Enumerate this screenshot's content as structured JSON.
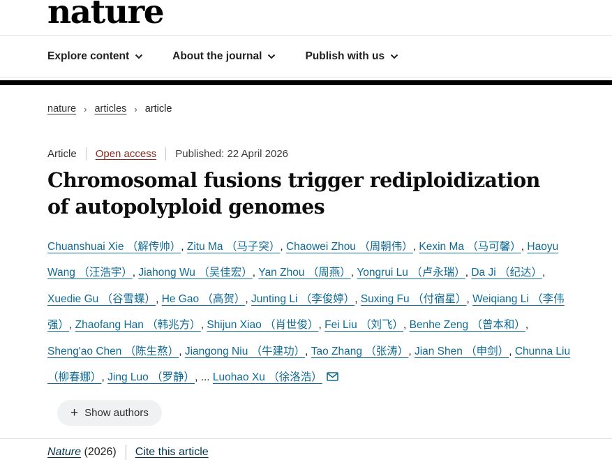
{
  "brand": {
    "logo": "nature"
  },
  "nav": {
    "items": [
      {
        "label": "Explore content"
      },
      {
        "label": "About the journal"
      },
      {
        "label": "Publish with us"
      }
    ]
  },
  "breadcrumb": {
    "items": [
      "nature",
      "articles",
      "article"
    ]
  },
  "article": {
    "type_label": "Article",
    "access_label": "Open access",
    "published_label": "Published: 22 April 2026",
    "title": "Chromosomal fusions trigger rediploidization of autopolyploid genomes",
    "authors": [
      "Chuanshuai Xie （解传帅）",
      "Zitu Ma （马子突）",
      "Chaowei Zhou （周朝伟）",
      "Kexin Ma （马可馨）",
      "Haoyu Wang （汪浩宇）",
      "Jiahong Wu （吴佳宏）",
      "Yan Zhou （周燕）",
      "Yongrui Lu （卢永瑞）",
      "Da Ji （纪达）",
      "Xuedie Gu （谷雪蝶）",
      "He Gao （高贺）",
      "Junting Li （李俊婷）",
      "Suxing Fu （付宿星）",
      "Weiqiang Li （李伟强）",
      "Zhaofang Han （韩兆方）",
      "Shijun Xiao （肖世俊）",
      "Fei Liu （刘飞）",
      "Benhe Zeng （曾本和）",
      "Sheng'ao Chen （陈生熬）",
      "Jiangong Niu （牛建功）",
      "Tao Zhang （张涛）",
      "Jian Shen （申剑）",
      "Chunna Liu （柳春娜）",
      "Jing Luo （罗静）"
    ],
    "authors_ellipsis": "...",
    "corresponding_author": "Luohao Xu （徐洛浩）",
    "show_authors_label": "Show authors",
    "journal_name": "Nature",
    "journal_year": "(2026)",
    "cite_label": "Cite this article"
  },
  "colors": {
    "author_link": "#0f6a94",
    "open_access_link": "#8c2b1e",
    "footer_link": "#01324b",
    "black_bar": "#000000"
  }
}
